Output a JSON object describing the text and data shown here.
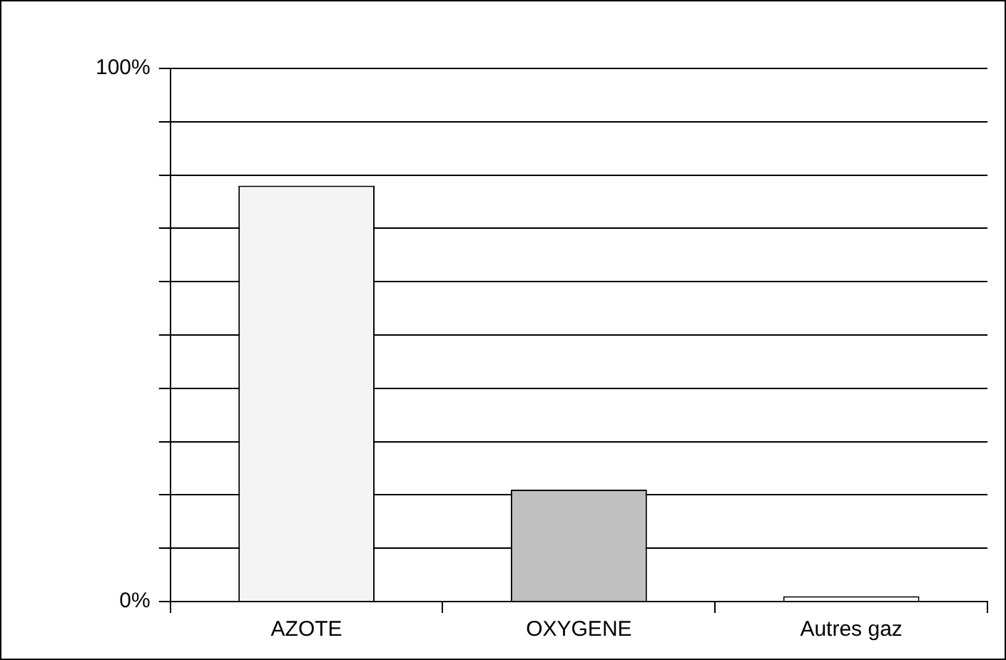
{
  "chart_data": {
    "type": "bar",
    "categories": [
      "AZOTE",
      "OXYGENE",
      "Autres gaz"
    ],
    "values": [
      78,
      21,
      1
    ],
    "colors": [
      "#f4f4f4",
      "#c0c0c0",
      "#ffffff"
    ],
    "ylim": [
      0,
      100
    ],
    "yticks": [
      {
        "value": 0,
        "label": "0%"
      },
      {
        "value": 10,
        "label": null
      },
      {
        "value": 20,
        "label": null
      },
      {
        "value": 30,
        "label": null
      },
      {
        "value": 40,
        "label": null
      },
      {
        "value": 50,
        "label": null
      },
      {
        "value": 60,
        "label": null
      },
      {
        "value": 70,
        "label": null
      },
      {
        "value": 80,
        "label": null
      },
      {
        "value": 90,
        "label": null
      },
      {
        "value": 100,
        "label": "100%"
      }
    ],
    "grid": "y",
    "legend": false
  }
}
